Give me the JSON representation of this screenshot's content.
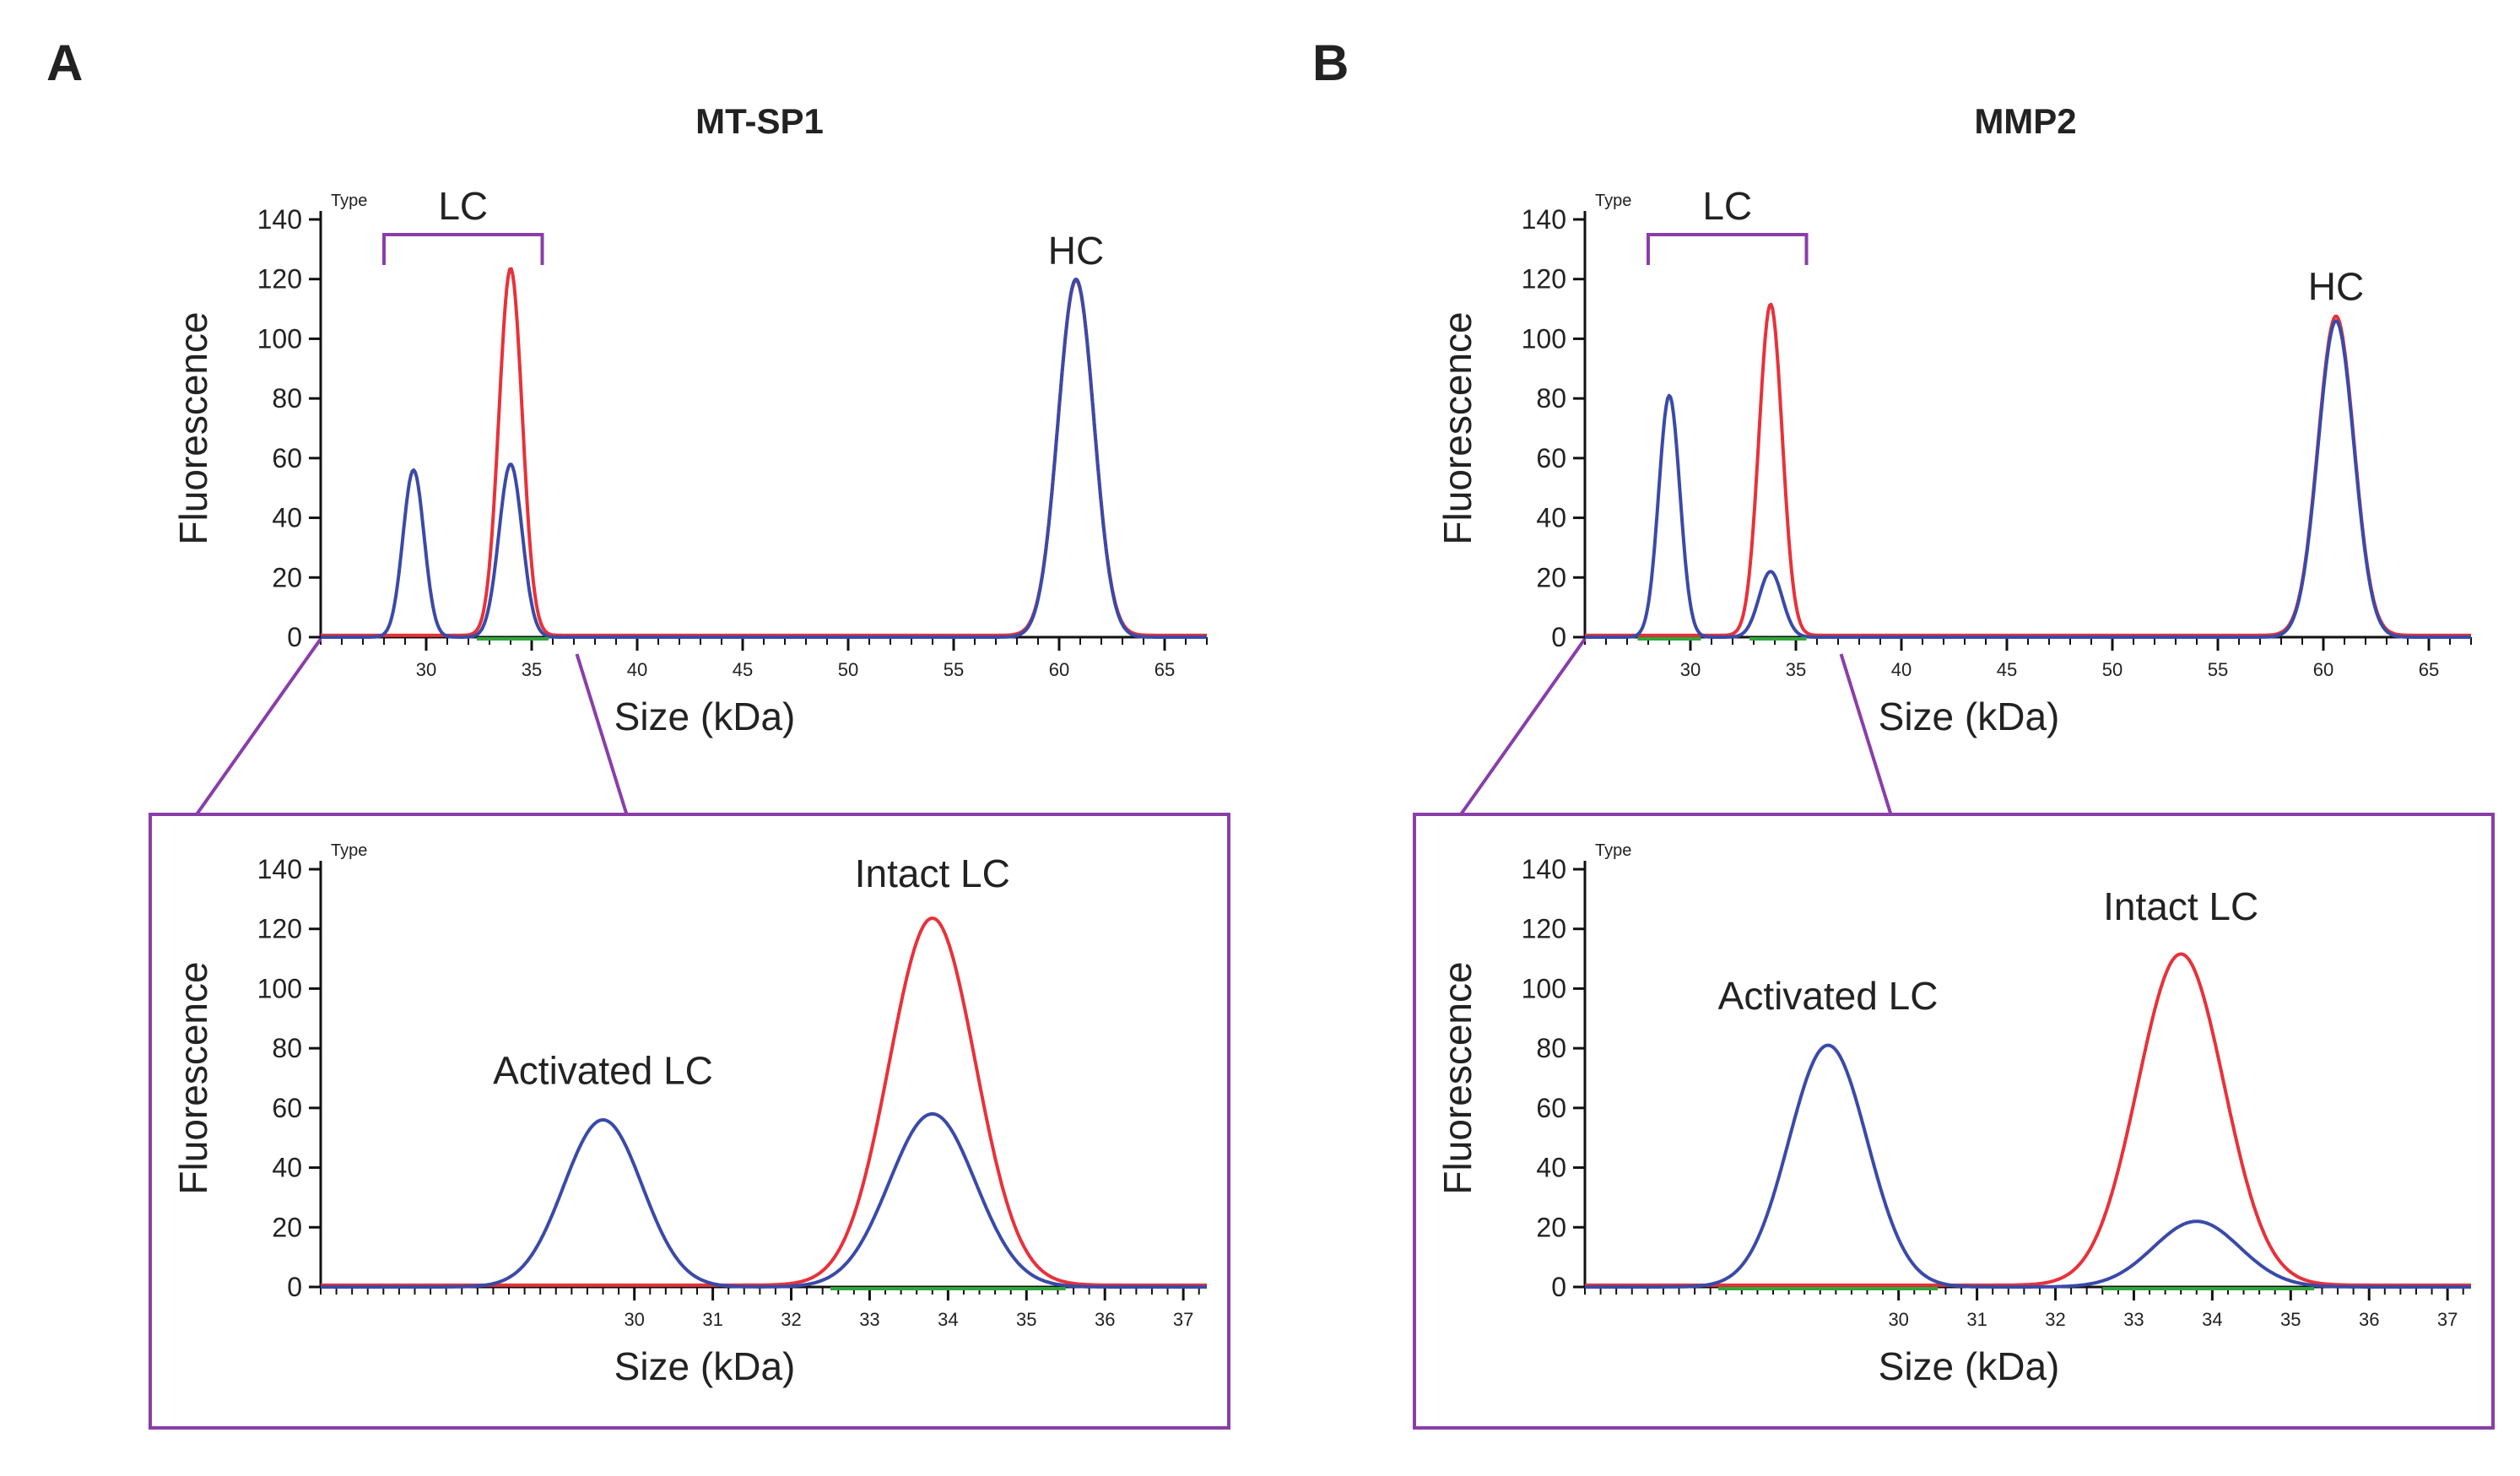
{
  "panels": [
    {
      "letter": "A",
      "title": "MT-SP1",
      "colors": {
        "intact": "#e8313a",
        "cleaved": "#3a4aa8",
        "bracket": "#8a3ea8",
        "baseline": "#2ea83a"
      },
      "charts": [
        {
          "type": "line",
          "type_label": "Type",
          "xlabel": "Size (kDa)",
          "ylabel": "Fluorescence",
          "xlim": [
            25,
            67
          ],
          "ylim": [
            0,
            140
          ],
          "xticks": [
            30,
            35,
            40,
            45,
            50,
            55,
            60,
            65
          ],
          "yticks": [
            0,
            20,
            40,
            60,
            80,
            100,
            120,
            140
          ],
          "bracket": {
            "label": "LC",
            "from": 28,
            "to": 35.5
          },
          "annotations": [
            {
              "text": "HC",
              "x": 60.8,
              "y": 125
            }
          ],
          "series": [
            {
              "color_key": "intact",
              "peaks": [
                {
                  "x": 34.0,
                  "height": 123,
                  "width": 0.55
                },
                {
                  "x": 60.8,
                  "height": 119,
                  "width": 0.85
                }
              ]
            },
            {
              "color_key": "cleaved",
              "peaks": [
                {
                  "x": 29.4,
                  "height": 56,
                  "width": 0.5
                },
                {
                  "x": 34.0,
                  "height": 58,
                  "width": 0.55
                },
                {
                  "x": 60.8,
                  "height": 120,
                  "width": 0.85
                }
              ]
            }
          ],
          "baseline_markers": [
            {
              "from": 32.4,
              "to": 35.8
            }
          ]
        },
        {
          "type": "line",
          "type_label": "Type",
          "xlabel": "Size (kDa)",
          "ylabel": "Fluorescence",
          "xlim": [
            26,
            37.3
          ],
          "ylim": [
            0,
            140
          ],
          "xticks": [
            30,
            31,
            32,
            33,
            34,
            35,
            36,
            37
          ],
          "yticks": [
            0,
            20,
            40,
            60,
            80,
            100,
            120,
            140
          ],
          "annotations": [
            {
              "text": "Activated LC",
              "x": 29.6,
              "y": 68
            },
            {
              "text": "Intact LC",
              "x": 33.8,
              "y": 134
            }
          ],
          "series": [
            {
              "color_key": "intact",
              "peaks": [
                {
                  "x": 33.8,
                  "height": 123,
                  "width": 0.55
                }
              ]
            },
            {
              "color_key": "cleaved",
              "peaks": [
                {
                  "x": 29.6,
                  "height": 56,
                  "width": 0.5
                },
                {
                  "x": 33.8,
                  "height": 58,
                  "width": 0.55
                }
              ]
            }
          ],
          "baseline_markers": [
            {
              "from": 32.5,
              "to": 35.5
            }
          ]
        }
      ]
    },
    {
      "letter": "B",
      "title": "MMP2",
      "colors": {
        "intact": "#e8313a",
        "cleaved": "#3a4aa8",
        "bracket": "#8a3ea8",
        "baseline": "#2ea83a"
      },
      "charts": [
        {
          "type": "line",
          "type_label": "Type",
          "xlabel": "Size (kDa)",
          "ylabel": "Fluorescence",
          "xlim": [
            25,
            67
          ],
          "ylim": [
            0,
            140
          ],
          "xticks": [
            30,
            35,
            40,
            45,
            50,
            55,
            60,
            65
          ],
          "yticks": [
            0,
            20,
            40,
            60,
            80,
            100,
            120,
            140
          ],
          "bracket": {
            "label": "LC",
            "from": 28,
            "to": 35.5
          },
          "annotations": [
            {
              "text": "HC",
              "x": 60.6,
              "y": 113
            }
          ],
          "series": [
            {
              "color_key": "intact",
              "peaks": [
                {
                  "x": 33.8,
                  "height": 111,
                  "width": 0.55
                },
                {
                  "x": 60.6,
                  "height": 107,
                  "width": 0.85
                }
              ]
            },
            {
              "color_key": "cleaved",
              "peaks": [
                {
                  "x": 29.0,
                  "height": 81,
                  "width": 0.5
                },
                {
                  "x": 33.8,
                  "height": 22,
                  "width": 0.55
                },
                {
                  "x": 60.6,
                  "height": 106,
                  "width": 0.85
                }
              ]
            }
          ],
          "baseline_markers": [
            {
              "from": 27.5,
              "to": 30.5
            },
            {
              "from": 32.8,
              "to": 35.5
            }
          ]
        },
        {
          "type": "line",
          "type_label": "Type",
          "xlabel": "Size (kDa)",
          "ylabel": "Fluorescence",
          "xlim": [
            26,
            37.3
          ],
          "ylim": [
            0,
            140
          ],
          "xticks": [
            30,
            31,
            32,
            33,
            34,
            35,
            36,
            37
          ],
          "yticks": [
            0,
            20,
            40,
            60,
            80,
            100,
            120,
            140
          ],
          "annotations": [
            {
              "text": "Activated LC",
              "x": 29.1,
              "y": 93
            },
            {
              "text": "Intact LC",
              "x": 33.6,
              "y": 123
            }
          ],
          "series": [
            {
              "color_key": "intact",
              "peaks": [
                {
                  "x": 33.6,
                  "height": 111,
                  "width": 0.55
                }
              ]
            },
            {
              "color_key": "cleaved",
              "peaks": [
                {
                  "x": 29.1,
                  "height": 81,
                  "width": 0.5
                },
                {
                  "x": 33.8,
                  "height": 22,
                  "width": 0.55
                }
              ]
            }
          ],
          "baseline_markers": [
            {
              "from": 27.7,
              "to": 30.5
            },
            {
              "from": 32.6,
              "to": 35.3
            }
          ]
        }
      ]
    }
  ]
}
